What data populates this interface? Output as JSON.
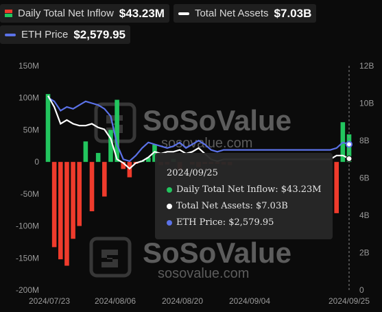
{
  "legend": [
    {
      "label": "Daily Total Net Inflow",
      "value": "$43.23M",
      "swatch": "bar"
    },
    {
      "label": "Total Net Assets",
      "value": "$7.03B",
      "swatch": "line",
      "color": "#ffffff"
    },
    {
      "label": "ETH Price",
      "value": "$2,579.95",
      "swatch": "line",
      "color": "#5b72e8"
    }
  ],
  "watermark": {
    "brand": "SoSoValue",
    "url": "sosovalue.com"
  },
  "tooltip": {
    "date": "2024/09/25",
    "rows": [
      {
        "text": "Daily Total Net Inflow: $43.23M",
        "color": "#22c55e"
      },
      {
        "text": "Total Net Assets: $7.03B",
        "color": "#ffffff"
      },
      {
        "text": "ETH Price: $2,579.95",
        "color": "#5b72e8"
      }
    ]
  },
  "chart_data": {
    "type": "bar",
    "x_tick_labels": [
      "2024/07/23",
      "2024/08/06",
      "2024/08/20",
      "2024/09/04",
      "2024/09/25"
    ],
    "y_left": {
      "ticks": [
        "150M",
        "100M",
        "50M",
        "0",
        "-50M",
        "-100M",
        "-150M",
        "-200M"
      ],
      "min": -200,
      "max": 150
    },
    "y_right": {
      "ticks": [
        "12B",
        "10B",
        "8B",
        "6B",
        "4B",
        "2B",
        "0"
      ],
      "min": 0,
      "max": 12
    },
    "colors": {
      "inflow_pos": "#22c55e",
      "inflow_neg": "#ef3b2c",
      "net_assets": "#ffffff",
      "eth_price": "#5b72e8"
    },
    "series": [
      {
        "name": "Daily Total Net Inflow",
        "type": "bar",
        "axis": "left",
        "unit": "M USD",
        "values": [
          106,
          -133,
          -152,
          -162,
          -120,
          -100,
          32,
          -77,
          14,
          -54,
          50,
          97,
          -11,
          -24,
          -3,
          2,
          7,
          27,
          -5,
          -4,
          5,
          -13,
          0,
          -4,
          -8,
          -3,
          -3,
          -3,
          -4,
          -5,
          0,
          0,
          0,
          0,
          0,
          0,
          0,
          0,
          0,
          0,
          0,
          0,
          0,
          0,
          0,
          0,
          -80,
          62,
          43
        ]
      },
      {
        "name": "Total Net Assets",
        "type": "line",
        "axis": "right",
        "unit": "B USD",
        "values": [
          10.4,
          9.8,
          8.9,
          9.1,
          8.9,
          8.8,
          8.8,
          8.9,
          8.7,
          8.6,
          8.1,
          7.0,
          6.8,
          6.5,
          6.8,
          6.9,
          7.1,
          7.4,
          7.3,
          7.4,
          7.4,
          7.5,
          7.3,
          7.4,
          7.6,
          7.3,
          7.0,
          6.9,
          7.0,
          7.0,
          7.0,
          7.0,
          7.0,
          7.0,
          7.0,
          7.0,
          7.0,
          7.0,
          7.0,
          7.0,
          7.0,
          7.0,
          7.0,
          7.0,
          7.0,
          7.0,
          7.2,
          7.2,
          7.03
        ]
      },
      {
        "name": "ETH Price",
        "type": "line",
        "axis": "right",
        "unit": "B-axis scale",
        "values": [
          10.3,
          10.1,
          9.6,
          9.8,
          9.7,
          9.9,
          10.1,
          10.0,
          9.9,
          9.7,
          9.3,
          7.8,
          7.0,
          6.9,
          7.2,
          7.6,
          7.9,
          7.8,
          7.7,
          7.6,
          7.7,
          7.9,
          7.6,
          7.8,
          8.0,
          7.8,
          7.5,
          7.4,
          7.5,
          7.5,
          7.5,
          7.5,
          7.5,
          7.5,
          7.5,
          7.5,
          7.5,
          7.5,
          7.5,
          7.5,
          7.5,
          7.5,
          7.5,
          7.5,
          7.5,
          7.5,
          7.6,
          7.9,
          7.8
        ]
      }
    ]
  }
}
